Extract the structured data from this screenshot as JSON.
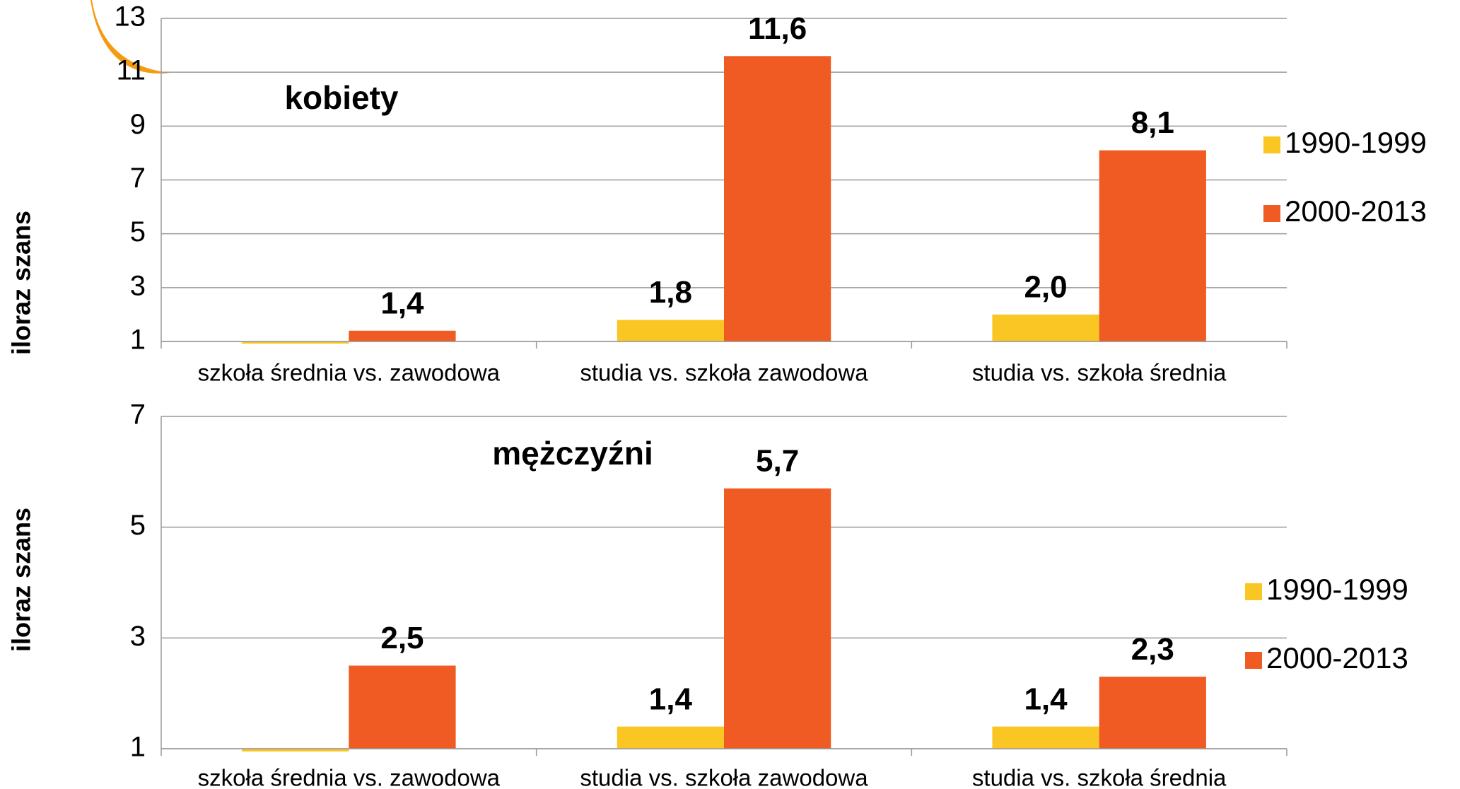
{
  "chart_data": [
    {
      "type": "bar",
      "annotation": "kobiety",
      "y_label": "iloraz szans",
      "categories": [
        "szkoła średnia vs. zawodowa",
        "studia vs. szkoła zawodowa",
        "studia vs. szkoła średnia"
      ],
      "series": [
        {
          "name": "1990-1999",
          "color": "#f9c623",
          "values": [
            0.95,
            1.8,
            2.0
          ],
          "value_labels": [
            null,
            "1,8",
            "2,0"
          ]
        },
        {
          "name": "2000-2013",
          "color": "#f05a23",
          "values": [
            1.4,
            11.6,
            8.1
          ],
          "value_labels": [
            "1,4",
            "11,6",
            "8,1"
          ]
        }
      ],
      "ylim": [
        1,
        13
      ],
      "yticks": [
        1,
        3,
        5,
        7,
        9,
        11,
        13
      ],
      "grid": true,
      "legend": "right"
    },
    {
      "type": "bar",
      "annotation": "mężczyźni",
      "y_label": "iloraz szans",
      "categories": [
        "szkoła średnia vs. zawodowa",
        "studia vs. szkoła zawodowa",
        "studia vs. szkoła średnia"
      ],
      "series": [
        {
          "name": "1990-1999",
          "color": "#f9c623",
          "values": [
            0.95,
            1.4,
            1.4
          ],
          "value_labels": [
            null,
            "1,4",
            "1,4"
          ]
        },
        {
          "name": "2000-2013",
          "color": "#f05a23",
          "values": [
            2.5,
            5.7,
            2.3
          ],
          "value_labels": [
            "2,5",
            "5,7",
            "2,3"
          ]
        }
      ],
      "ylim": [
        1,
        7
      ],
      "yticks": [
        1,
        3,
        5,
        7
      ],
      "grid": true,
      "legend": "right"
    }
  ]
}
